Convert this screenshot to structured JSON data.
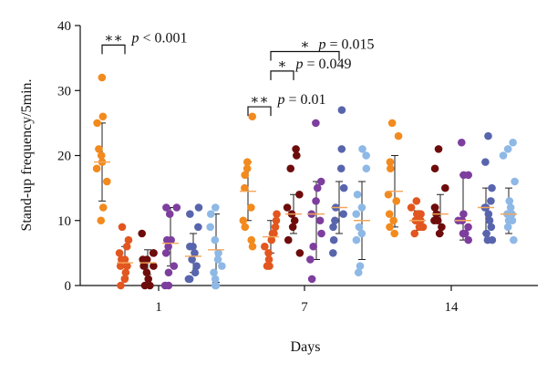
{
  "chart_data": {
    "type": "scatter",
    "xlabel": "Days",
    "ylabel": "Stand-up frequency/5min.",
    "ylim": [
      0,
      40
    ],
    "yticks": [
      0,
      10,
      20,
      30,
      40
    ],
    "categories": [
      "1",
      "7",
      "14"
    ],
    "grid": false,
    "legend": "none",
    "groups": [
      {
        "day": "1",
        "series": [
          {
            "color": "#f28a1e",
            "mean": 19,
            "sd_low": 13,
            "sd_high": 25,
            "values": [
              32,
              26,
              25,
              21,
              20,
              19,
              18,
              16,
              12,
              10
            ]
          },
          {
            "color": "#e2561f",
            "mean": 3.5,
            "sd_low": 1.3,
            "sd_high": 6,
            "values": [
              9,
              7,
              6,
              5,
              4,
              4,
              3,
              3,
              2,
              1,
              0
            ]
          },
          {
            "color": "#6e0c0c",
            "mean": 3.5,
            "sd_low": 1.7,
            "sd_high": 5.5,
            "values": [
              8,
              5,
              5,
              4,
              4,
              3,
              3,
              2,
              1,
              0,
              0
            ]
          },
          {
            "color": "#7d3e9e",
            "mean": 6.5,
            "sd_low": 3,
            "sd_high": 12,
            "values": [
              12,
              12,
              11,
              7,
              7,
              6,
              5,
              3,
              2,
              0,
              0
            ]
          },
          {
            "color": "#5865ad",
            "mean": 4.5,
            "sd_low": 2,
            "sd_high": 8,
            "values": [
              12,
              11,
              9,
              6,
              6,
              5,
              4,
              3,
              2,
              1,
              1
            ]
          },
          {
            "color": "#8eb8e6",
            "mean": 5.5,
            "sd_low": 0.5,
            "sd_high": 11,
            "values": [
              12,
              11,
              9,
              7,
              5,
              4,
              3,
              2,
              1,
              0,
              0
            ]
          }
        ]
      },
      {
        "day": "7",
        "series": [
          {
            "color": "#f28a1e",
            "mean": 14.5,
            "sd_low": 10,
            "sd_high": 19,
            "values": [
              26,
              19,
              18,
              17,
              15,
              12,
              10,
              9,
              7,
              6
            ]
          },
          {
            "color": "#e2561f",
            "mean": 7.5,
            "sd_low": 5,
            "sd_high": 10,
            "values": [
              11,
              10,
              9,
              8,
              8,
              7,
              6,
              5,
              4,
              3,
              3
            ]
          },
          {
            "color": "#6e0c0c",
            "mean": 11,
            "sd_low": 8,
            "sd_high": 14,
            "values": [
              21,
              20,
              18,
              14,
              12,
              11,
              10,
              9,
              7,
              5
            ]
          },
          {
            "color": "#7d3e9e",
            "mean": 11,
            "sd_low": 4,
            "sd_high": 16,
            "values": [
              25,
              16,
              15,
              13,
              11,
              10,
              8,
              6,
              4,
              1
            ]
          },
          {
            "color": "#5865ad",
            "mean": 12,
            "sd_low": 8,
            "sd_high": 16,
            "values": [
              27,
              21,
              18,
              15,
              12,
              11,
              10,
              9,
              7,
              5
            ]
          },
          {
            "color": "#8eb8e6",
            "mean": 10,
            "sd_low": 4,
            "sd_high": 16,
            "values": [
              21,
              20,
              18,
              14,
              12,
              11,
              9,
              8,
              7,
              3,
              2
            ]
          }
        ]
      },
      {
        "day": "14",
        "series": [
          {
            "color": "#f28a1e",
            "mean": 14.5,
            "sd_low": 9,
            "sd_high": 20,
            "values": [
              25,
              23,
              19,
              18,
              14,
              13,
              11,
              10,
              9,
              8
            ]
          },
          {
            "color": "#e2561f",
            "mean": 10,
            "sd_low": 8.5,
            "sd_high": 11.5,
            "values": [
              13,
              12,
              11,
              11,
              10,
              10,
              9,
              9,
              9,
              8
            ]
          },
          {
            "color": "#6e0c0c",
            "mean": 11,
            "sd_low": 8,
            "sd_high": 14,
            "values": [
              21,
              18,
              15,
              12,
              12,
              11,
              10,
              10,
              9,
              8
            ]
          },
          {
            "color": "#7d3e9e",
            "mean": 10,
            "sd_low": 7,
            "sd_high": 17,
            "values": [
              22,
              17,
              17,
              11,
              10,
              10,
              9,
              8,
              8,
              7
            ]
          },
          {
            "color": "#5865ad",
            "mean": 12,
            "sd_low": 8,
            "sd_high": 15,
            "values": [
              23,
              19,
              15,
              13,
              12,
              12,
              11,
              10,
              9,
              8,
              7,
              7
            ]
          },
          {
            "color": "#8eb8e6",
            "mean": 11,
            "sd_low": 8,
            "sd_high": 15,
            "values": [
              22,
              21,
              20,
              16,
              13,
              12,
              11,
              11,
              10,
              10,
              9,
              7
            ]
          }
        ]
      }
    ],
    "annotations": [
      {
        "text": "∗∗",
        "ptext": "p < 0.001",
        "day": "1",
        "from": 0,
        "to": 1,
        "y": 37
      },
      {
        "text": "∗∗",
        "ptext": "p = 0.01",
        "day": "7",
        "from": 0,
        "to": 1,
        "y": 27.5
      },
      {
        "text": "∗",
        "ptext": "p = 0.049",
        "day": "7",
        "from": 1,
        "to": 2,
        "y": 33
      },
      {
        "text": "∗",
        "ptext": "p = 0.015",
        "day": "7",
        "from": 1,
        "to": 4,
        "y": 36
      }
    ]
  }
}
